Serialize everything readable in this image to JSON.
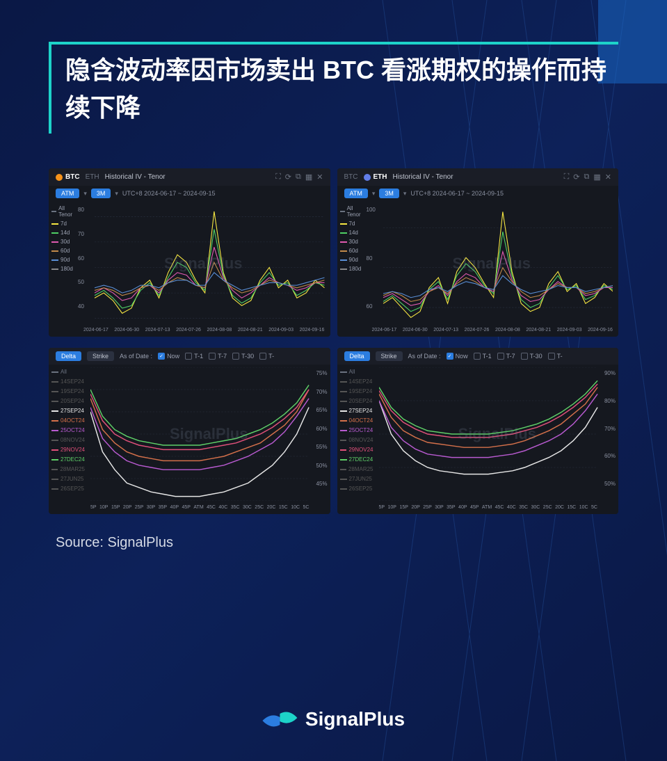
{
  "title": "隐含波动率因市场卖出 BTC 看涨期权的操作而持续下降",
  "source": "Source: SignalPlus",
  "watermark": "SignalPlus",
  "brand": "SignalPlus",
  "colors": {
    "bg_dark": "#0a1845",
    "accent": "#1dd3c9",
    "panel_bg": "#15181f",
    "btc": "#f7931a",
    "eth": "#627eea"
  },
  "iv_charts": {
    "title": "Historical IV - Tenor",
    "controls": {
      "atm": "ATM",
      "period": "3M",
      "daterange": "UTC+8 2024-06-17 ~ 2024-09-15"
    },
    "toolbar_icons": [
      "expand",
      "refresh",
      "copy",
      "grid",
      "close"
    ],
    "tenors": [
      {
        "label": "All Tenor",
        "color": "#6b7280"
      },
      {
        "label": "7d",
        "color": "#f6e742"
      },
      {
        "label": "14d",
        "color": "#4fd065"
      },
      {
        "label": "30d",
        "color": "#e05ab0"
      },
      {
        "label": "60d",
        "color": "#c28a4a"
      },
      {
        "label": "90d",
        "color": "#5a8fd6"
      },
      {
        "label": "180d",
        "color": "#888"
      }
    ],
    "x_labels": [
      "2024-06-17",
      "2024-06-30",
      "2024-07-13",
      "2024-07-26",
      "2024-08-08",
      "2024-08-21",
      "2024-09-03",
      "2024-09-16"
    ],
    "btc": {
      "y_ticks": [
        40,
        50,
        60,
        70,
        80
      ],
      "ylim": [
        38,
        85
      ],
      "series": [
        {
          "color": "#f6e742",
          "pts": [
            48,
            50,
            47,
            42,
            44,
            52,
            55,
            48,
            58,
            65,
            62,
            55,
            50,
            82,
            58,
            48,
            45,
            47,
            55,
            60,
            52,
            55,
            48,
            50,
            55,
            52
          ]
        },
        {
          "color": "#4fd065",
          "pts": [
            49,
            51,
            48,
            44,
            45,
            51,
            54,
            49,
            56,
            62,
            60,
            54,
            51,
            75,
            57,
            49,
            46,
            48,
            54,
            58,
            53,
            54,
            49,
            51,
            54,
            53
          ]
        },
        {
          "color": "#e05ab0",
          "pts": [
            50,
            52,
            50,
            47,
            48,
            52,
            53,
            50,
            55,
            58,
            57,
            53,
            52,
            68,
            56,
            51,
            48,
            50,
            53,
            56,
            54,
            53,
            51,
            52,
            54,
            54
          ]
        },
        {
          "color": "#c28a4a",
          "pts": [
            51,
            52,
            51,
            49,
            50,
            52,
            53,
            51,
            54,
            56,
            55,
            53,
            52,
            62,
            55,
            52,
            50,
            51,
            53,
            55,
            54,
            53,
            52,
            53,
            54,
            55
          ]
        },
        {
          "color": "#5a8fd6",
          "pts": [
            52,
            53,
            52,
            50,
            51,
            53,
            53,
            52,
            54,
            55,
            55,
            53,
            53,
            58,
            55,
            53,
            51,
            52,
            53,
            54,
            54,
            53,
            53,
            54,
            55,
            56
          ]
        }
      ]
    },
    "eth": {
      "y_ticks": [
        60,
        80,
        100
      ],
      "ylim": [
        52,
        112
      ],
      "series": [
        {
          "color": "#f6e742",
          "pts": [
            62,
            65,
            60,
            55,
            58,
            70,
            75,
            62,
            78,
            85,
            80,
            72,
            65,
            108,
            78,
            62,
            58,
            60,
            72,
            78,
            68,
            72,
            62,
            65,
            72,
            68
          ]
        },
        {
          "color": "#4fd065",
          "pts": [
            63,
            66,
            62,
            58,
            60,
            69,
            73,
            64,
            76,
            82,
            78,
            71,
            67,
            98,
            76,
            64,
            60,
            62,
            70,
            76,
            69,
            71,
            64,
            66,
            71,
            69
          ]
        },
        {
          "color": "#e05ab0",
          "pts": [
            65,
            67,
            64,
            61,
            62,
            68,
            71,
            66,
            73,
            77,
            75,
            70,
            68,
            88,
            74,
            66,
            63,
            64,
            69,
            73,
            70,
            70,
            66,
            67,
            70,
            70
          ]
        },
        {
          "color": "#c28a4a",
          "pts": [
            66,
            68,
            66,
            63,
            64,
            68,
            70,
            67,
            72,
            75,
            73,
            70,
            69,
            80,
            73,
            68,
            65,
            66,
            69,
            72,
            70,
            70,
            67,
            68,
            70,
            71
          ]
        },
        {
          "color": "#5a8fd6",
          "pts": [
            67,
            68,
            67,
            65,
            66,
            69,
            70,
            68,
            71,
            73,
            72,
            70,
            69,
            76,
            72,
            69,
            67,
            68,
            69,
            71,
            70,
            70,
            68,
            69,
            70,
            71
          ]
        }
      ]
    }
  },
  "smile_charts": {
    "tabs": [
      "Delta",
      "Strike"
    ],
    "asof_label": "As of Date :",
    "checkboxes": [
      {
        "label": "Now",
        "checked": true
      },
      {
        "label": "T-1",
        "checked": false
      },
      {
        "label": "T-7",
        "checked": false
      },
      {
        "label": "T-30",
        "checked": false
      },
      {
        "label": "T-",
        "checked": false
      }
    ],
    "x_labels": [
      "5P",
      "10P",
      "15P",
      "20P",
      "25P",
      "30P",
      "35P",
      "40P",
      "45P",
      "ATM",
      "45C",
      "40C",
      "35C",
      "30C",
      "25C",
      "20C",
      "15C",
      "10C",
      "5C"
    ],
    "expiries": [
      {
        "label": "All",
        "color": "#6b7280"
      },
      {
        "label": "14SEP24",
        "color": "#555"
      },
      {
        "label": "19SEP24",
        "color": "#555"
      },
      {
        "label": "20SEP24",
        "color": "#555"
      },
      {
        "label": "27SEP24",
        "color": "#e6e6e6"
      },
      {
        "label": "04OCT24",
        "color": "#d4704a"
      },
      {
        "label": "25OCT24",
        "color": "#b85ad0"
      },
      {
        "label": "08NOV24",
        "color": "#555"
      },
      {
        "label": "29NOV24",
        "color": "#e0507a"
      },
      {
        "label": "27DEC24",
        "color": "#5fd068"
      },
      {
        "label": "28MAR25",
        "color": "#555"
      },
      {
        "label": "27JUN25",
        "color": "#555"
      },
      {
        "label": "26SEP25",
        "color": "#555"
      }
    ],
    "left": {
      "y_ticks": [
        "45%",
        "50%",
        "55%",
        "60%",
        "65%",
        "70%",
        "75%"
      ],
      "ylim": [
        45,
        75
      ],
      "curves": [
        {
          "color": "#e6e6e6",
          "pts": [
            65,
            56,
            52,
            49,
            48,
            47,
            46.5,
            46,
            46,
            46,
            46.5,
            47,
            48,
            49,
            51,
            53,
            56,
            60,
            66
          ]
        },
        {
          "color": "#d4704a",
          "pts": [
            68,
            61,
            58,
            56,
            55,
            54.5,
            54,
            54,
            54,
            54,
            54.5,
            55,
            56,
            57,
            58,
            60,
            62,
            65,
            70
          ]
        },
        {
          "color": "#b85ad0",
          "pts": [
            66,
            59,
            56,
            54,
            53,
            52.5,
            52,
            52,
            52,
            52,
            52.5,
            53,
            54,
            55,
            56.5,
            58,
            60.5,
            64,
            68
          ]
        },
        {
          "color": "#e0507a",
          "pts": [
            69,
            63,
            60,
            58.5,
            57.5,
            57,
            56.5,
            56.5,
            56.5,
            56.5,
            57,
            57.5,
            58,
            59,
            60,
            61.5,
            63.5,
            66,
            70
          ]
        },
        {
          "color": "#5fd068",
          "pts": [
            70,
            64,
            61,
            59.5,
            58.5,
            58,
            57.5,
            57.5,
            57.5,
            57.5,
            58,
            58.5,
            59,
            60,
            61,
            62.5,
            64.5,
            67,
            71
          ]
        }
      ]
    },
    "right": {
      "y_ticks": [
        "50%",
        "60%",
        "70%",
        "80%",
        "90%"
      ],
      "ylim": [
        50,
        90
      ],
      "curves": [
        {
          "color": "#e6e6e6",
          "pts": [
            80,
            70,
            65,
            62,
            60,
            59,
            58.5,
            58,
            58,
            58,
            58.5,
            59,
            60,
            61.5,
            63,
            65,
            68,
            72,
            78
          ]
        },
        {
          "color": "#d4704a",
          "pts": [
            82,
            75,
            71,
            69,
            67.5,
            67,
            66.5,
            66,
            66,
            66,
            66.5,
            67,
            68,
            69.5,
            71,
            73,
            76,
            79,
            84
          ]
        },
        {
          "color": "#b85ad0",
          "pts": [
            80,
            72,
            68,
            65.5,
            64,
            63.5,
            63,
            63,
            63,
            63,
            63.5,
            64,
            65,
            66.5,
            68,
            70,
            73,
            77,
            82
          ]
        },
        {
          "color": "#e0507a",
          "pts": [
            83,
            77,
            73.5,
            71.5,
            70,
            69.5,
            69,
            69,
            69,
            69,
            69.5,
            70,
            71,
            72,
            73.5,
            75.5,
            78,
            81,
            85
          ]
        },
        {
          "color": "#5fd068",
          "pts": [
            84,
            78,
            74.5,
            72.5,
            71,
            70.5,
            70,
            70,
            70,
            70,
            70.5,
            71,
            72,
            73,
            74.5,
            76.5,
            79,
            82,
            86
          ]
        }
      ]
    }
  }
}
